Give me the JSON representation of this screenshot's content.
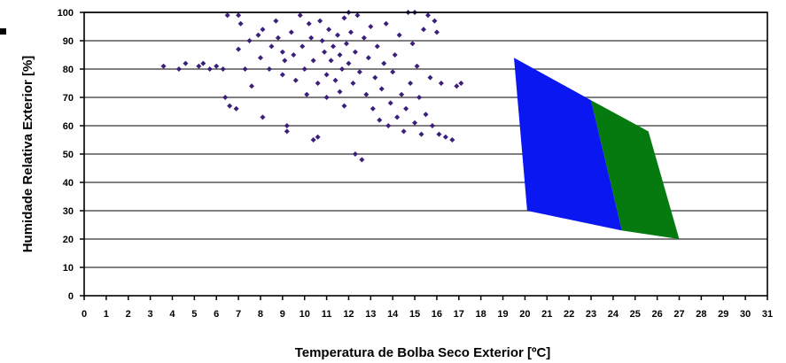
{
  "chart_data": {
    "type": "scatter",
    "xlabel": "Temperatura de Bolba Seco Exterior [ºC]",
    "ylabel": "Humidade Relativa Exterior [%]",
    "xlim": [
      0,
      31
    ],
    "ylim": [
      0,
      100
    ],
    "x_ticks": [
      "0",
      "1",
      "2",
      "3",
      "4",
      "5",
      "6",
      "7",
      "8",
      "9",
      "10",
      "11",
      "12",
      "13",
      "14",
      "15",
      "16",
      "17",
      "18",
      "19",
      "20",
      "21",
      "22",
      "23",
      "24",
      "25",
      "26",
      "27",
      "28",
      "29",
      "30",
      "31"
    ],
    "y_ticks": [
      "0",
      "10",
      "20",
      "30",
      "40",
      "50",
      "60",
      "70",
      "80",
      "90",
      "100"
    ],
    "grid": "horizontal",
    "marker_color": "#3b1f7a",
    "points": [
      [
        3.6,
        81
      ],
      [
        4.3,
        80
      ],
      [
        4.6,
        82
      ],
      [
        5.2,
        81
      ],
      [
        5.4,
        82
      ],
      [
        5.7,
        80
      ],
      [
        6.0,
        81
      ],
      [
        6.3,
        80
      ],
      [
        6.4,
        70
      ],
      [
        6.6,
        67
      ],
      [
        6.9,
        66
      ],
      [
        6.5,
        99
      ],
      [
        7.0,
        99
      ],
      [
        7.1,
        96
      ],
      [
        7.0,
        87
      ],
      [
        7.3,
        80
      ],
      [
        7.6,
        74
      ],
      [
        7.5,
        90
      ],
      [
        7.9,
        92
      ],
      [
        8.1,
        94
      ],
      [
        8.0,
        84
      ],
      [
        8.1,
        63
      ],
      [
        8.4,
        80
      ],
      [
        8.5,
        88
      ],
      [
        8.7,
        97
      ],
      [
        8.8,
        91
      ],
      [
        9.0,
        86
      ],
      [
        9.0,
        78
      ],
      [
        9.1,
        83
      ],
      [
        9.2,
        60
      ],
      [
        9.2,
        58
      ],
      [
        9.4,
        93
      ],
      [
        9.5,
        85
      ],
      [
        9.6,
        76
      ],
      [
        9.8,
        99
      ],
      [
        9.9,
        88
      ],
      [
        10.0,
        80
      ],
      [
        10.1,
        71
      ],
      [
        10.2,
        96
      ],
      [
        10.3,
        91
      ],
      [
        10.4,
        83
      ],
      [
        10.4,
        55
      ],
      [
        10.6,
        56
      ],
      [
        10.6,
        75
      ],
      [
        10.7,
        97
      ],
      [
        10.8,
        90
      ],
      [
        10.9,
        86
      ],
      [
        11.0,
        78
      ],
      [
        11.0,
        70
      ],
      [
        11.1,
        94
      ],
      [
        11.2,
        83
      ],
      [
        11.3,
        88
      ],
      [
        11.4,
        76
      ],
      [
        11.5,
        92
      ],
      [
        11.6,
        85
      ],
      [
        11.6,
        72
      ],
      [
        11.7,
        80
      ],
      [
        11.8,
        98
      ],
      [
        11.8,
        67
      ],
      [
        11.9,
        89
      ],
      [
        12.0,
        100
      ],
      [
        12.0,
        82
      ],
      [
        12.1,
        93
      ],
      [
        12.2,
        75
      ],
      [
        12.3,
        86
      ],
      [
        12.3,
        50
      ],
      [
        12.4,
        99
      ],
      [
        12.5,
        79
      ],
      [
        12.6,
        48
      ],
      [
        12.7,
        91
      ],
      [
        12.8,
        71
      ],
      [
        12.9,
        84
      ],
      [
        13.0,
        95
      ],
      [
        13.1,
        66
      ],
      [
        13.2,
        77
      ],
      [
        13.3,
        88
      ],
      [
        13.4,
        62
      ],
      [
        13.5,
        73
      ],
      [
        13.6,
        82
      ],
      [
        13.7,
        96
      ],
      [
        13.8,
        60
      ],
      [
        13.9,
        68
      ],
      [
        14.0,
        79
      ],
      [
        14.1,
        85
      ],
      [
        14.2,
        63
      ],
      [
        14.3,
        92
      ],
      [
        14.4,
        71
      ],
      [
        14.5,
        58
      ],
      [
        14.6,
        66
      ],
      [
        14.7,
        100
      ],
      [
        14.8,
        75
      ],
      [
        14.9,
        89
      ],
      [
        15.0,
        61
      ],
      [
        15.0,
        100
      ],
      [
        15.1,
        81
      ],
      [
        15.2,
        70
      ],
      [
        15.3,
        57
      ],
      [
        15.4,
        94
      ],
      [
        15.5,
        64
      ],
      [
        15.6,
        99
      ],
      [
        15.7,
        77
      ],
      [
        15.8,
        60
      ],
      [
        15.9,
        97
      ],
      [
        16.0,
        93
      ],
      [
        16.1,
        57
      ],
      [
        16.2,
        75
      ],
      [
        16.4,
        56
      ],
      [
        16.7,
        55
      ],
      [
        16.9,
        74
      ],
      [
        17.1,
        75
      ]
    ],
    "regions": [
      {
        "color": "#0a17f0",
        "vertices": [
          [
            19.5,
            84
          ],
          [
            23.0,
            69
          ],
          [
            24.4,
            23
          ],
          [
            20.1,
            30
          ]
        ]
      },
      {
        "color": "#057a0e",
        "vertices": [
          [
            23.0,
            69
          ],
          [
            25.6,
            58
          ],
          [
            27.0,
            20
          ],
          [
            24.4,
            23
          ]
        ]
      }
    ]
  }
}
